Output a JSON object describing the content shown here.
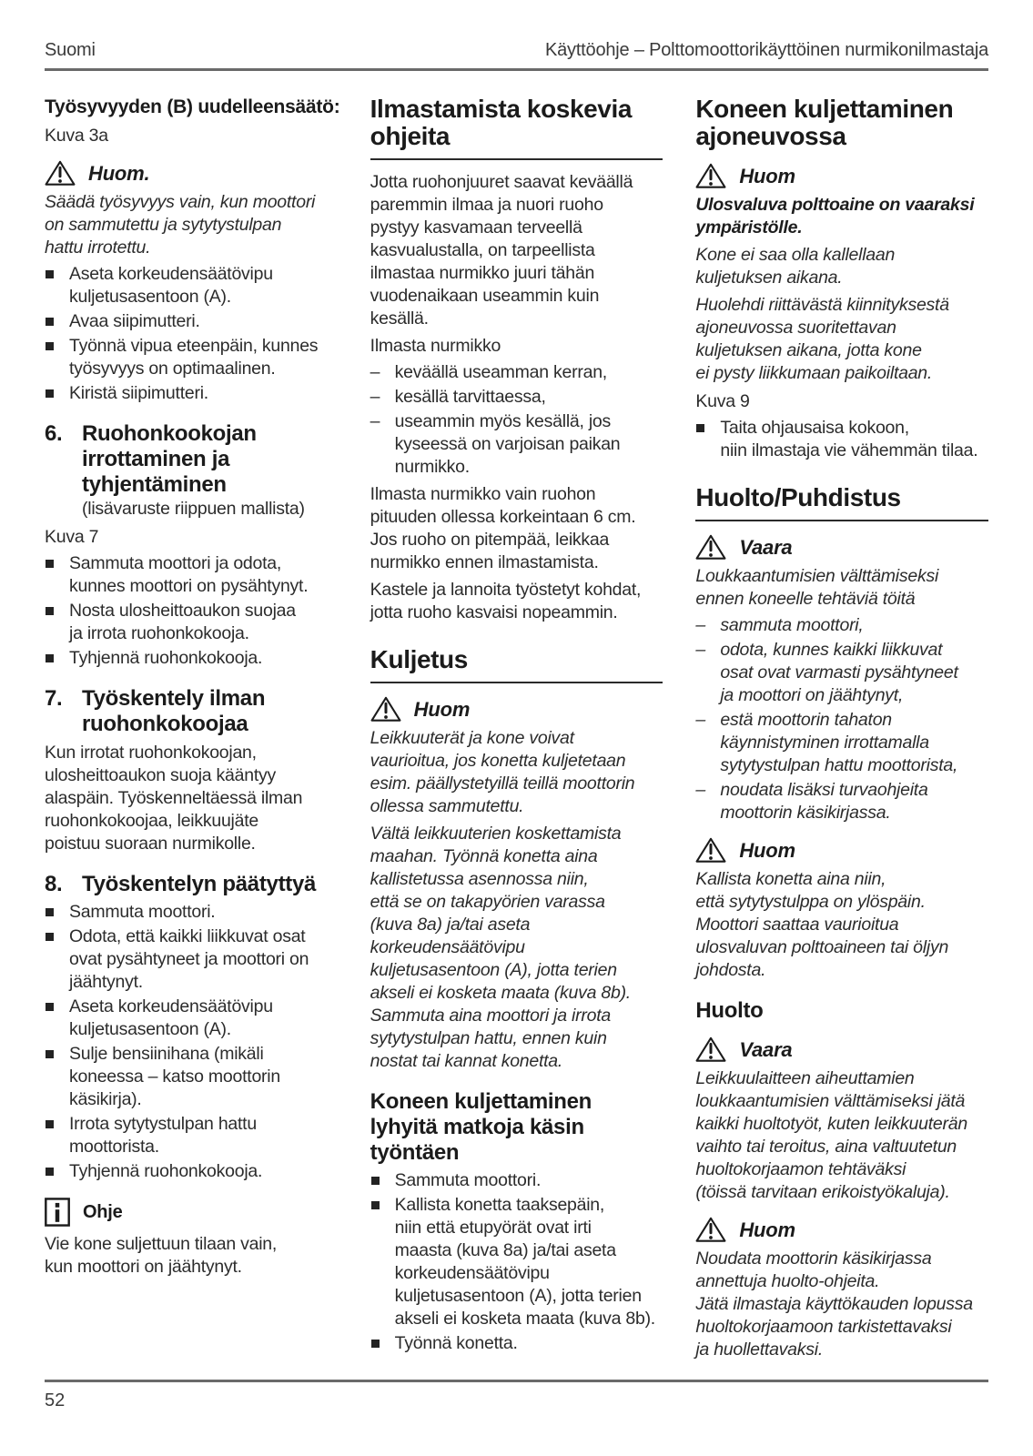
{
  "header": {
    "language": "Suomi",
    "title": "Käyttöohje – Polttomoottorikäyttöinen nurmikonilmastaja"
  },
  "footer": {
    "page_number": "52"
  },
  "icons": {
    "warning": "warning-triangle-icon",
    "info": "info-icon"
  },
  "columns": [
    {
      "blocks": [
        {
          "type": "h3",
          "text": "Työsyvyyden (B) uudelleensäätö:"
        },
        {
          "type": "figure",
          "text": "Kuva 3a"
        },
        {
          "type": "warning",
          "icon": "warning-triangle-icon",
          "label": "Huom."
        },
        {
          "type": "para",
          "style": "italic",
          "text": "Säädä työsyvyys vain, kun moottori\non sammutettu ja sytytystulpan\nhattu irrotettu."
        },
        {
          "type": "list",
          "marker": "square",
          "items": [
            "Aseta korkeudensäätövipu\nkuljetusasentoon (A).",
            "Avaa siipimutteri.",
            "Työnnä vipua eteenpäin, kunnes\ntyösyvyys on optimaalinen.",
            "Kiristä siipimutteri."
          ]
        },
        {
          "type": "h2",
          "number": "6.",
          "text": "Ruohonkookojan\nirrottaminen ja\ntyhjentäminen",
          "subtext": "(lisävaruste riippuen mallista)"
        },
        {
          "type": "figure",
          "text": "Kuva 7"
        },
        {
          "type": "list",
          "marker": "square",
          "items": [
            "Sammuta moottori ja odota,\nkunnes moottori on pysähtynyt.",
            "Nosta ulosheittoaukon suojaa\nja irrota ruohonkokooja.",
            "Tyhjennä ruohonkokooja."
          ]
        },
        {
          "type": "h2",
          "number": "7.",
          "text": "Työskentely ilman\nruohonkokoojaa"
        },
        {
          "type": "para",
          "text": "Kun irrotat ruohonkokoojan,\nulosheittoaukon suoja kääntyy\nalaspäin. Työskenneltäessä ilman\nruohonkokoojaa, leikkuujäte\npoistuu suoraan nurmikolle."
        },
        {
          "type": "h2",
          "number": "8.",
          "text": "Työskentelyn päätyttyä"
        },
        {
          "type": "list",
          "marker": "square",
          "items": [
            "Sammuta moottori.",
            "Odota, että kaikki liikkuvat osat\novat pysähtyneet ja moottori on\njäähtynyt.",
            "Aseta korkeudensäätövipu\nkuljetusasentoon (A).",
            "Sulje bensiinihana (mikäli\nkoneessa – katso moottorin\nkäsikirja).",
            "Irrota sytytystulpan hattu\nmoottorista.",
            "Tyhjennä ruohonkokooja."
          ]
        },
        {
          "type": "note",
          "icon": "info-icon",
          "label": "Ohje"
        },
        {
          "type": "para",
          "text": "Vie kone suljettuun tilaan vain,\nkun moottori on jäähtynyt."
        }
      ]
    },
    {
      "blocks": [
        {
          "type": "h1",
          "rule": true,
          "text": "Ilmastamista koskevia\nohjeita"
        },
        {
          "type": "para",
          "text": "Jotta ruohonjuuret saavat keväällä\nparemmin ilmaa ja nuori ruoho\npystyy kasvamaan terveellä\nkasvualustalla, on tarpeellista\nilmastaa nurmikko juuri tähän\nvuodenaikaan useammin kuin\nkesällä."
        },
        {
          "type": "para",
          "text": "Ilmasta nurmikko"
        },
        {
          "type": "list",
          "marker": "dash",
          "items": [
            "keväällä useamman kerran,",
            "kesällä tarvittaessa,",
            "useammin myös kesällä, jos\nkyseessä on varjoisan paikan\nnurmikko."
          ]
        },
        {
          "type": "para",
          "text": "Ilmasta nurmikko vain ruohon\npituuden ollessa korkeintaan 6 cm.\nJos ruoho on pitempää, leikkaa\nnurmikko ennen ilmastamista."
        },
        {
          "type": "para",
          "text": "Kastele ja lannoita työstetyt kohdat,\njotta ruoho kasvaisi nopeammin."
        },
        {
          "type": "h1",
          "rule": true,
          "text": "Kuljetus"
        },
        {
          "type": "warning",
          "icon": "warning-triangle-icon",
          "label": "Huom"
        },
        {
          "type": "para",
          "style": "italic",
          "text": "Leikkuuterät ja kone voivat\nvaurioitua, jos konetta kuljetetaan\nesim. päällystetyillä teillä moottorin\nollessa sammutettu."
        },
        {
          "type": "para",
          "style": "italic",
          "text": "Vältä leikkuuterien koskettamista\nmaahan. Työnnä konetta aina\nkallistetussa asennossa niin,\nettä se on takapyörien varassa\n(kuva 8a) ja/tai aseta\nkorkeudensäätövipu\nkuljetusasentoon (A), jotta terien\nakseli ei kosketa maata (kuva 8b).\nSammuta aina moottori ja irrota\nsytytystulpan hattu, ennen kuin\nnostat tai kannat konetta."
        },
        {
          "type": "h2",
          "text": "Koneen kuljettaminen\nlyhyitä matkoja käsin\ntyöntäen"
        },
        {
          "type": "list",
          "marker": "square",
          "items": [
            "Sammuta moottori.",
            "Kallista konetta taaksepäin,\nniin että etupyörät ovat irti\nmaasta (kuva 8a) ja/tai aseta\nkorkeudensäätövipu\nkuljetusasentoon (A), jotta terien\nakseli ei kosketa maata (kuva 8b).",
            "Työnnä konetta."
          ]
        }
      ]
    },
    {
      "blocks": [
        {
          "type": "h1",
          "rule": false,
          "text": "Koneen kuljettaminen\najoneuvossa"
        },
        {
          "type": "warning",
          "icon": "warning-triangle-icon",
          "label": "Huom"
        },
        {
          "type": "para",
          "style": "bold-italic",
          "text": "Ulosvaluva polttoaine on vaaraksi\nympäristölle."
        },
        {
          "type": "para",
          "style": "italic",
          "text": "Kone ei saa olla kallellaan\nkuljetuksen aikana."
        },
        {
          "type": "para",
          "style": "italic",
          "text": "Huolehdi riittävästä kiinnityksestä\najoneuvossa suoritettavan\nkuljetuksen aikana, jotta kone\nei pysty liikkumaan paikoiltaan."
        },
        {
          "type": "figure",
          "text": "Kuva 9"
        },
        {
          "type": "list",
          "marker": "square",
          "items": [
            "Taita ohjausaisa kokoon,\nniin ilmastaja vie vähemmän tilaa."
          ]
        },
        {
          "type": "h1",
          "rule": true,
          "text": "Huolto/Puhdistus"
        },
        {
          "type": "warning",
          "icon": "warning-triangle-icon",
          "label": "Vaara"
        },
        {
          "type": "para",
          "style": "italic",
          "text": "Loukkaantumisien välttämiseksi\nennen koneelle tehtäviä töitä"
        },
        {
          "type": "list",
          "marker": "dash",
          "style": "italic",
          "items": [
            "sammuta moottori,",
            "odota, kunnes kaikki liikkuvat\nosat ovat varmasti pysähtyneet\nja moottori on jäähtynyt,",
            "estä moottorin tahaton\nkäynnistyminen irrottamalla\nsytytystulpan hattu moottorista,",
            "noudata lisäksi turvaohjeita\nmoottorin käsikirjassa."
          ]
        },
        {
          "type": "warning",
          "icon": "warning-triangle-icon",
          "label": "Huom"
        },
        {
          "type": "para",
          "style": "italic",
          "text": "Kallista konetta aina niin,\nettä sytytystulppa on ylöspäin.\nMoottori saattaa vaurioitua\nulosvaluvan polttoaineen tai öljyn\njohdosta."
        },
        {
          "type": "h2",
          "text": "Huolto"
        },
        {
          "type": "warning",
          "icon": "warning-triangle-icon",
          "label": "Vaara"
        },
        {
          "type": "para",
          "style": "italic",
          "text": "Leikkuulaitteen aiheuttamien\nloukkaantumisien välttämiseksi jätä\nkaikki huoltotyöt, kuten leikkuuterän\nvaihto tai teroitus, aina valtuutetun\nhuoltokorjaamon tehtäväksi\n(töissä tarvitaan erikoistyökaluja)."
        },
        {
          "type": "warning",
          "icon": "warning-triangle-icon",
          "label": "Huom"
        },
        {
          "type": "para",
          "style": "italic",
          "text": "Noudata moottorin käsikirjassa\nannettuja huolto-ohjeita.\nJätä ilmastaja käyttökauden lopussa\nhuoltokorjaamoon tarkistettavaksi\nja huollettavaksi."
        }
      ]
    }
  ]
}
